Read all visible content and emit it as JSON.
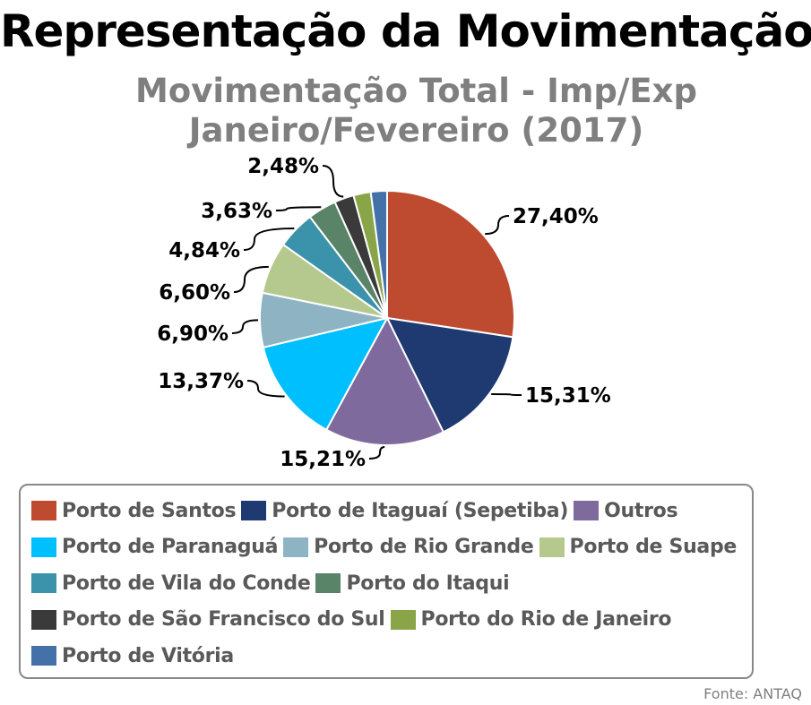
{
  "header": {
    "main_title": "Representação da Movimentação"
  },
  "chart_data": {
    "type": "pie",
    "title_line1": "Movimentação Total - Imp/Exp",
    "title_line2": "Janeiro/Fevereiro (2017)",
    "legend_placement": "bottom",
    "slices": [
      {
        "name": "Porto de Santos",
        "value": 27.4,
        "label": "27,40%",
        "color": "#BE4B2F"
      },
      {
        "name": "Porto de Itaguaí (Sepetiba)",
        "value": 15.31,
        "label": "15,31%",
        "color": "#1F3A70"
      },
      {
        "name": "Outros",
        "value": 15.21,
        "label": "15,21%",
        "color": "#7E6A9D"
      },
      {
        "name": "Porto de Paranaguá",
        "value": 13.37,
        "label": "13,37%",
        "color": "#00BFFF"
      },
      {
        "name": "Porto de Rio Grande",
        "value": 6.9,
        "label": "6,90%",
        "color": "#8EB4C3"
      },
      {
        "name": "Porto de Suape",
        "value": 6.6,
        "label": "6,60%",
        "color": "#B5C98F"
      },
      {
        "name": "Porto de Vila do Conde",
        "value": 4.84,
        "label": "4,84%",
        "color": "#3A93AB"
      },
      {
        "name": "Porto do Itaqui",
        "value": 3.63,
        "label": "3,63%",
        "color": "#5A8468"
      },
      {
        "name": "Porto de São Francisco do Sul",
        "value": 2.48,
        "label": "2,48%",
        "color": "#3A3A3A"
      },
      {
        "name": "Porto do Rio de Janeiro",
        "value": 2.2,
        "label": "",
        "color": "#89A548"
      },
      {
        "name": "Porto de Vitória",
        "value": 2.06,
        "label": "",
        "color": "#4472A8"
      }
    ],
    "legend_rows": [
      [
        0,
        1,
        2
      ],
      [
        3,
        4,
        5
      ],
      [
        6,
        7
      ],
      [
        8,
        9
      ],
      [
        10
      ]
    ]
  },
  "footer": {
    "source": "Fonte: ANTAQ"
  }
}
